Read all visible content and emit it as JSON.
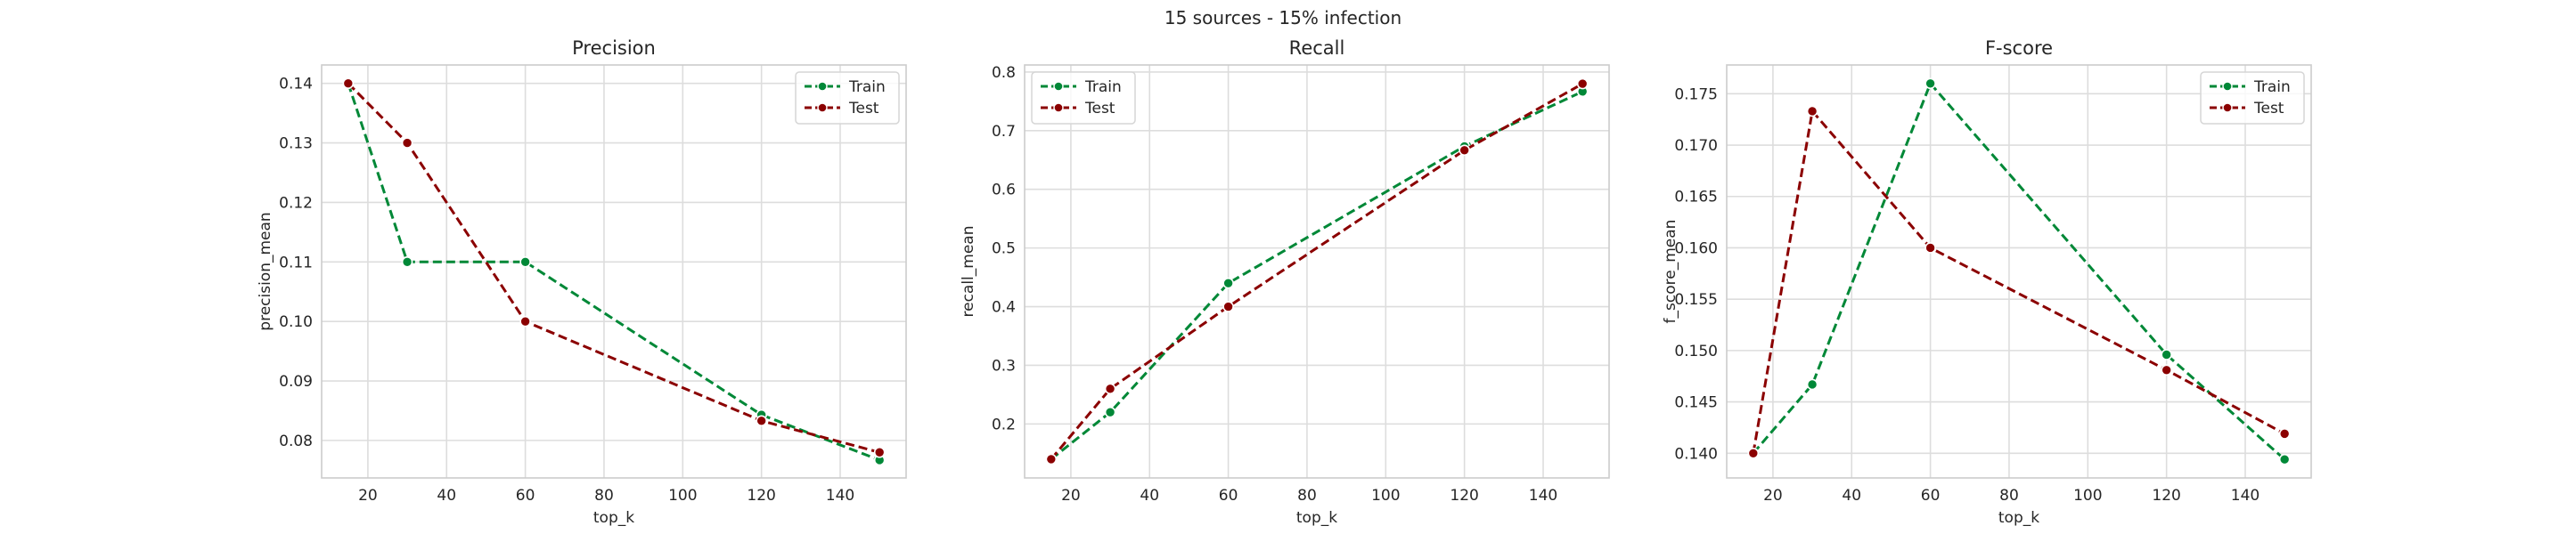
{
  "figure": {
    "suptitle": "15 sources - 15% infection",
    "series_colors": {
      "Train": "#008837",
      "Test": "#8b0000"
    }
  },
  "chart_data": [
    {
      "type": "line",
      "title": "Precision",
      "xlabel": "top_k",
      "ylabel": "precision_mean",
      "x": [
        15,
        30,
        60,
        120,
        150
      ],
      "series": [
        {
          "name": "Train",
          "color": "#008837",
          "values": [
            0.14,
            0.11,
            0.11,
            0.0843,
            0.0767
          ]
        },
        {
          "name": "Test",
          "color": "#8b0000",
          "values": [
            0.14,
            0.13,
            0.1,
            0.0833,
            0.078
          ]
        }
      ],
      "xlim": [
        8.25,
        156.75
      ],
      "ylim": [
        0.0737,
        0.1431
      ],
      "xticks": [
        20,
        40,
        60,
        80,
        100,
        120,
        140
      ],
      "yticks": [
        0.08,
        0.09,
        0.1,
        0.11,
        0.12,
        0.13,
        0.14
      ],
      "ytick_labels": [
        "0.08",
        "0.09",
        "0.10",
        "0.11",
        "0.12",
        "0.13",
        "0.14"
      ],
      "legend": "top-right",
      "grid": true
    },
    {
      "type": "line",
      "title": "Recall",
      "xlabel": "top_k",
      "ylabel": "recall_mean",
      "x": [
        15,
        30,
        60,
        120,
        150
      ],
      "series": [
        {
          "name": "Train",
          "color": "#008837",
          "values": [
            0.14,
            0.22,
            0.44,
            0.6733,
            0.7667
          ]
        },
        {
          "name": "Test",
          "color": "#8b0000",
          "values": [
            0.14,
            0.26,
            0.4,
            0.6667,
            0.78
          ]
        }
      ],
      "xlim": [
        8.25,
        156.75
      ],
      "ylim": [
        0.108,
        0.812
      ],
      "xticks": [
        20,
        40,
        60,
        80,
        100,
        120,
        140
      ],
      "yticks": [
        0.2,
        0.3,
        0.4,
        0.5,
        0.6,
        0.7,
        0.8
      ],
      "ytick_labels": [
        "0.2",
        "0.3",
        "0.4",
        "0.5",
        "0.6",
        "0.7",
        "0.8"
      ],
      "legend": "top-left",
      "grid": true
    },
    {
      "type": "line",
      "title": "F-score",
      "xlabel": "top_k",
      "ylabel": "f_score_mean",
      "x": [
        15,
        30,
        60,
        120,
        150
      ],
      "series": [
        {
          "name": "Train",
          "color": "#008837",
          "values": [
            0.14,
            0.1467,
            0.176,
            0.1496,
            0.1394
          ]
        },
        {
          "name": "Test",
          "color": "#8b0000",
          "values": [
            0.14,
            0.1733,
            0.16,
            0.1481,
            0.1419
          ]
        }
      ],
      "xlim": [
        8.25,
        156.75
      ],
      "ylim": [
        0.1376,
        0.1778
      ],
      "xticks": [
        20,
        40,
        60,
        80,
        100,
        120,
        140
      ],
      "yticks": [
        0.14,
        0.145,
        0.15,
        0.155,
        0.16,
        0.165,
        0.17,
        0.175
      ],
      "ytick_labels": [
        "0.140",
        "0.145",
        "0.150",
        "0.155",
        "0.160",
        "0.165",
        "0.170",
        "0.175"
      ],
      "legend": "top-right",
      "grid": true
    }
  ]
}
